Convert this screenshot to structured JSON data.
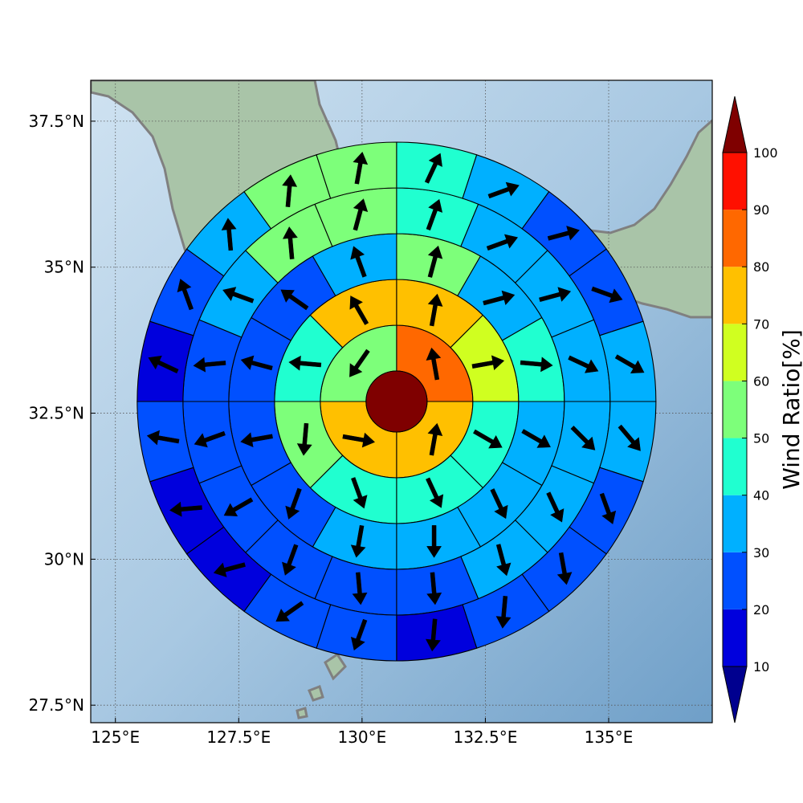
{
  "chart_data": {
    "type": "heatmap",
    "title": "",
    "x_ticks": [
      "125°E",
      "127.5°E",
      "130°E",
      "132.5°E",
      "135°E"
    ],
    "x_tick_values": [
      125,
      127.5,
      130,
      132.5,
      135
    ],
    "y_ticks": [
      "37.5°N",
      "35°N",
      "32.5°N",
      "30°N",
      "27.5°N"
    ],
    "y_tick_values": [
      37.5,
      35,
      32.5,
      30,
      27.5
    ],
    "xlim": [
      124.5,
      137.1
    ],
    "ylim": [
      27.2,
      38.2
    ],
    "grid": true,
    "center": {
      "lon": 130.7,
      "lat": 32.7
    },
    "rings": [
      {
        "ring": 1,
        "sectors": 4,
        "values": [
          85,
          75,
          75,
          55
        ],
        "wind_dir_deg": [
          350,
          10,
          100,
          215
        ]
      },
      {
        "ring": 2,
        "sectors": 8,
        "values": [
          74,
          65,
          45,
          45,
          45,
          55,
          45,
          75
        ],
        "wind_dir_deg": [
          10,
          80,
          120,
          155,
          160,
          185,
          275,
          330
        ]
      },
      {
        "ring": 3,
        "sectors": 12,
        "values": [
          55,
          38,
          45,
          38,
          38,
          35,
          35,
          25,
          25,
          25,
          25,
          38
        ],
        "wind_dir_deg": [
          15,
          75,
          95,
          120,
          155,
          180,
          190,
          200,
          260,
          285,
          305,
          340
        ]
      },
      {
        "ring": 4,
        "sectors": 16,
        "values": [
          45,
          38,
          38,
          35,
          35,
          35,
          35,
          25,
          25,
          25,
          25,
          25,
          25,
          35,
          55,
          55
        ],
        "wind_dir_deg": [
          20,
          70,
          75,
          115,
          135,
          155,
          165,
          175,
          175,
          200,
          240,
          250,
          265,
          290,
          355,
          15
        ]
      },
      {
        "ring": 5,
        "sectors": 20,
        "values": [
          45,
          38,
          28,
          28,
          35,
          35,
          25,
          25,
          25,
          15,
          25,
          25,
          15,
          15,
          25,
          15,
          25,
          35,
          55,
          55
        ],
        "wind_dir_deg": [
          25,
          70,
          75,
          110,
          120,
          140,
          160,
          170,
          185,
          185,
          200,
          235,
          255,
          265,
          280,
          295,
          340,
          355,
          5,
          10
        ]
      }
    ],
    "colorbar": {
      "label": "Wind Ratio[%]",
      "ticks": [
        "10",
        "20",
        "30",
        "40",
        "50",
        "60",
        "70",
        "80",
        "90",
        "100"
      ],
      "levels": [
        10,
        20,
        30,
        40,
        50,
        60,
        70,
        80,
        90,
        100
      ],
      "colors": [
        "#0000dd",
        "#0050ff",
        "#00b0ff",
        "#20ffd0",
        "#7dff7a",
        "#d0ff20",
        "#ffc000",
        "#ff6800",
        "#ff1000"
      ],
      "under_color": "#00008f",
      "over_color": "#7f0000"
    },
    "colors": {
      "sea_light": "#c5dcef",
      "sea_dark": "#7aaad0",
      "land": "#a9c4a8",
      "coastline": "#808080"
    }
  }
}
